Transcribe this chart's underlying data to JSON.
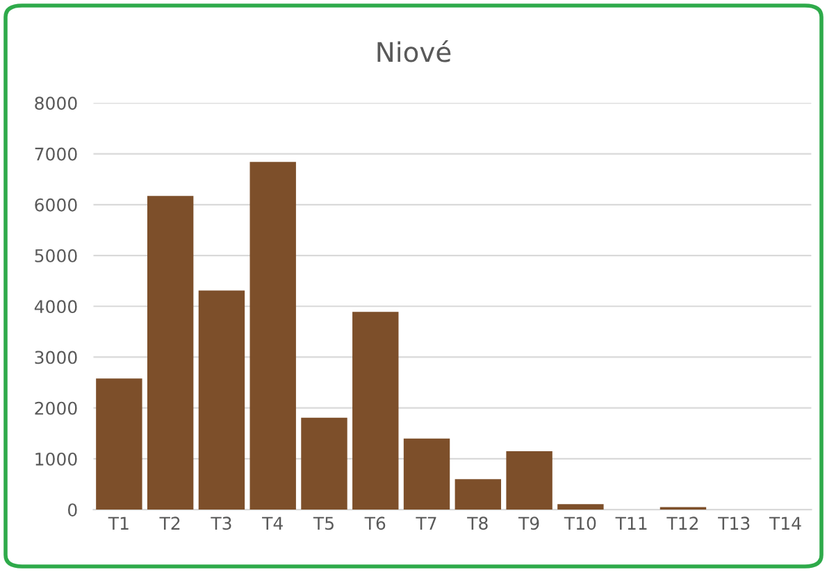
{
  "chart_data": {
    "type": "bar",
    "title": "Niové",
    "categories": [
      "T1",
      "T2",
      "T3",
      "T4",
      "T5",
      "T6",
      "T7",
      "T8",
      "T9",
      "T10",
      "T11",
      "T12",
      "T13",
      "T14"
    ],
    "values": [
      2580,
      6170,
      4310,
      6840,
      1810,
      3890,
      1400,
      600,
      1150,
      110,
      0,
      50,
      0,
      0
    ],
    "color": "#7d4f2a",
    "ylim": [
      0,
      8000
    ],
    "yticks": [
      0,
      1000,
      2000,
      3000,
      4000,
      5000,
      6000,
      7000,
      8000
    ],
    "grid": "y",
    "legend": false
  }
}
